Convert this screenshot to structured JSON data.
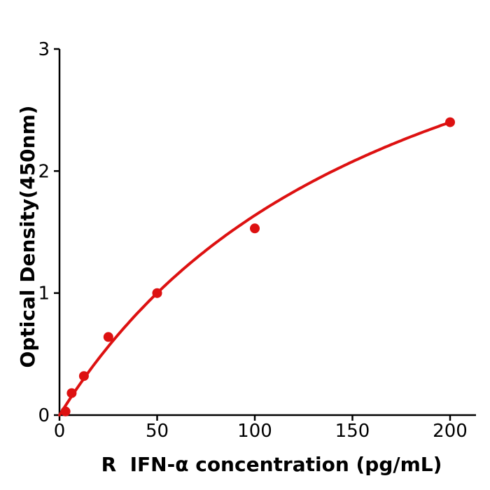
{
  "chart_data": {
    "type": "scatter",
    "title": "",
    "xlabel": "R  IFN-α concentration (pg/mL)",
    "ylabel": "Optical Density(450nm)",
    "x_ticks": [
      0,
      50,
      100,
      150,
      200
    ],
    "x_tick_labels": [
      "0",
      "50",
      "100",
      "150",
      "200"
    ],
    "y_ticks": [
      0,
      1,
      2,
      3
    ],
    "y_tick_labels": [
      "0",
      "1",
      "2",
      "3"
    ],
    "xlim": [
      0,
      213
    ],
    "ylim": [
      0,
      3
    ],
    "grid": false,
    "legend": "none",
    "points": [
      {
        "x": 3.1,
        "y": 0.03
      },
      {
        "x": 6.25,
        "y": 0.18
      },
      {
        "x": 12.5,
        "y": 0.32
      },
      {
        "x": 25,
        "y": 0.64
      },
      {
        "x": 50,
        "y": 1.0
      },
      {
        "x": 100,
        "y": 1.53
      },
      {
        "x": 200,
        "y": 2.4
      }
    ],
    "fit": {
      "model": "y = a*x / (b + x)",
      "a": 4.5,
      "b": 175,
      "x_range": [
        0,
        200
      ]
    },
    "colors": {
      "curve": "#dd1111",
      "points": "#dd1111",
      "axis": "#000000",
      "text": "#000000",
      "background": "#ffffff"
    }
  }
}
